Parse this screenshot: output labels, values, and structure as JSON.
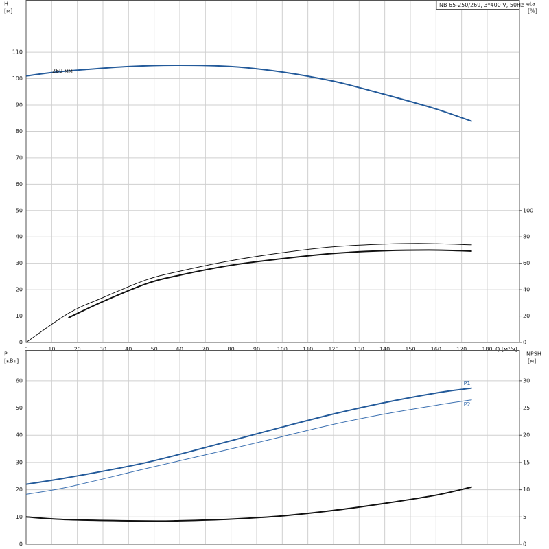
{
  "chart_data": [
    {
      "type": "line",
      "title": "NB 65-250/269, 3*400 V, 50Hz",
      "x_label": "Q [м³/ч]",
      "y_label": "H",
      "y_unit": "[м]",
      "y2_label": "eta",
      "y2_unit": "[%]",
      "annotation": "269 мм",
      "grid": true,
      "xtick_labels": true,
      "xlim": [
        0,
        192.6
      ],
      "ylim": [
        0,
        129.8
      ],
      "y2lim": [
        0,
        259.6
      ],
      "xticks": [
        0,
        10,
        20,
        30,
        40,
        50,
        60,
        70,
        80,
        90,
        100,
        110,
        120,
        130,
        140,
        150,
        160,
        170,
        180
      ],
      "yticks": [
        0,
        10,
        20,
        30,
        40,
        50,
        60,
        70,
        80,
        90,
        100,
        110
      ],
      "y2ticks": [
        0,
        20,
        40,
        60,
        80,
        100
      ],
      "series": [
        {
          "color": "#235a9a",
          "line_width": 2,
          "x": [
            0,
            10,
            20,
            40,
            60,
            80,
            100,
            120,
            140,
            160,
            174
          ],
          "values": [
            101,
            102.3,
            103.2,
            104.6,
            105.1,
            104.6,
            102.5,
            99,
            94,
            88.5,
            83.8
          ]
        },
        {
          "color": "#111111",
          "line_width": 2,
          "axis": "y2",
          "x": [
            16.5,
            30,
            47,
            60,
            80,
            100,
            120,
            140,
            160,
            174
          ],
          "values": [
            18.7,
            31,
            44.5,
            51,
            58.5,
            63.5,
            67.5,
            69.5,
            70,
            69.2
          ]
        },
        {
          "color": "#111111",
          "line_width": 1,
          "axis": "y2",
          "x": [
            0,
            16.5,
            30,
            47,
            60,
            80,
            100,
            120,
            140,
            155,
            174
          ],
          "values": [
            0,
            22,
            34,
            47.5,
            54,
            62,
            68,
            72.5,
            74.5,
            75,
            74
          ]
        }
      ]
    },
    {
      "type": "line",
      "y_label": "P",
      "y_unit": "[кВт]",
      "y2_label": "NPSH",
      "y2_unit": "[м]",
      "grid": true,
      "xtick_labels": false,
      "xlim": [
        0,
        192.6
      ],
      "ylim": [
        0,
        71.3
      ],
      "y2lim": [
        0,
        35.65
      ],
      "xticks": [
        0,
        10,
        20,
        30,
        40,
        50,
        60,
        70,
        80,
        90,
        100,
        110,
        120,
        130,
        140,
        150,
        160,
        170,
        180
      ],
      "yticks": [
        0,
        10,
        20,
        30,
        40,
        50,
        60
      ],
      "y2ticks": [
        0,
        5,
        10,
        15,
        20,
        25,
        30
      ],
      "series": [
        {
          "name": "P1",
          "color": "#235a9a",
          "line_width": 2,
          "x": [
            0,
            16.5,
            47,
            80,
            100,
            120,
            140,
            160,
            174
          ],
          "values": [
            22,
            24.5,
            30,
            38,
            43,
            47.8,
            52,
            55.5,
            57.3
          ]
        },
        {
          "name": "P2",
          "color": "#3a6fb0",
          "line_width": 1,
          "x": [
            0,
            16.5,
            47,
            80,
            100,
            120,
            140,
            160,
            174
          ],
          "values": [
            18.3,
            21,
            27.8,
            35,
            39.5,
            44,
            47.8,
            51,
            53
          ]
        },
        {
          "color": "#111111",
          "line_width": 2,
          "axis": "y2",
          "x": [
            0,
            16.5,
            47,
            60,
            80,
            100,
            120,
            140,
            160,
            174
          ],
          "values": [
            5,
            4.5,
            4.25,
            4.3,
            4.6,
            5.2,
            6.2,
            7.5,
            9,
            10.5
          ]
        }
      ]
    }
  ]
}
